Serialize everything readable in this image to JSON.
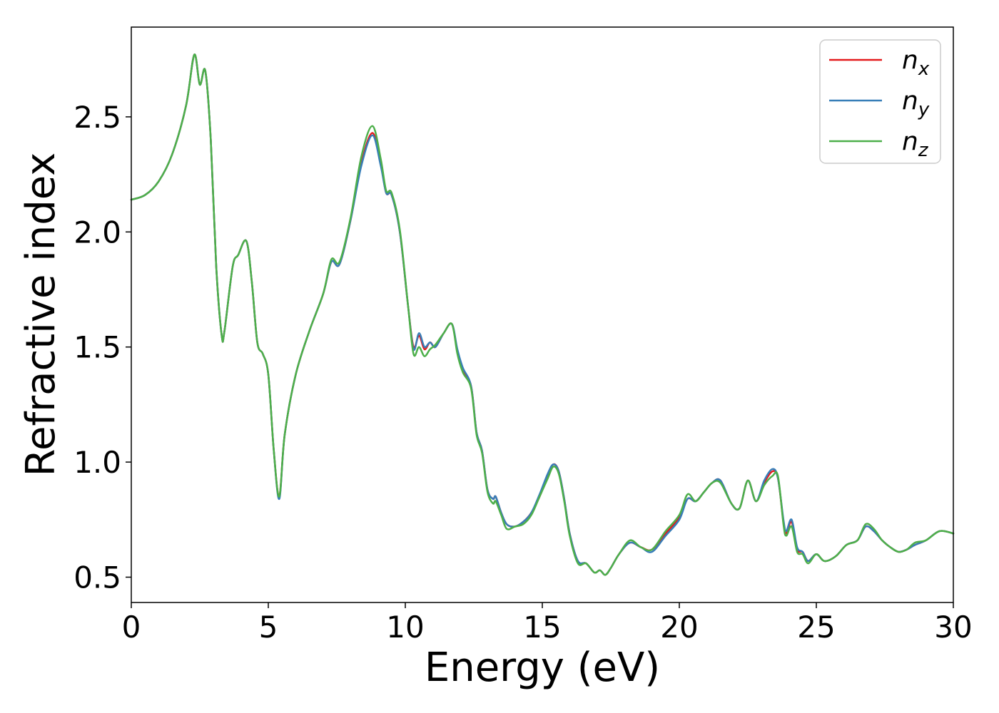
{
  "chart_data": {
    "type": "line",
    "xlabel": "Energy (eV)",
    "ylabel": "Refractive index",
    "xlim": [
      0,
      30
    ],
    "ylim": [
      0.39,
      2.89
    ],
    "xticks": [
      0,
      5,
      10,
      15,
      20,
      25,
      30
    ],
    "xtick_labels": [
      "0",
      "5",
      "10",
      "15",
      "20",
      "25",
      "30"
    ],
    "yticks": [
      0.5,
      1.0,
      1.5,
      2.0,
      2.5
    ],
    "ytick_labels": [
      "0.5",
      "1.0",
      "1.5",
      "2.0",
      "2.5"
    ],
    "grid": false,
    "legend_position": "top-right",
    "x": [
      0,
      0.5,
      1.0,
      1.5,
      2.0,
      2.3,
      2.5,
      2.7,
      2.9,
      3.1,
      3.3,
      3.4,
      3.7,
      3.9,
      4.2,
      4.4,
      4.6,
      4.8,
      5.0,
      5.2,
      5.4,
      5.6,
      6.0,
      6.5,
      7.0,
      7.3,
      7.6,
      8.0,
      8.4,
      8.8,
      9.1,
      9.3,
      9.5,
      9.8,
      10.1,
      10.3,
      10.5,
      10.7,
      10.9,
      11.1,
      11.4,
      11.7,
      11.9,
      12.1,
      12.4,
      12.6,
      12.8,
      13.0,
      13.2,
      13.3,
      13.5,
      13.7,
      14.0,
      14.3,
      14.6,
      14.9,
      15.2,
      15.4,
      15.6,
      15.8,
      16.0,
      16.3,
      16.6,
      16.9,
      17.1,
      17.3,
      17.5,
      17.8,
      18.2,
      18.6,
      19.0,
      19.5,
      20.0,
      20.3,
      20.6,
      20.9,
      21.2,
      21.5,
      21.9,
      22.2,
      22.5,
      22.8,
      23.1,
      23.4,
      23.6,
      23.8,
      23.9,
      24.1,
      24.3,
      24.5,
      24.7,
      25.0,
      25.3,
      25.7,
      26.1,
      26.5,
      26.8,
      27.1,
      27.4,
      27.7,
      28.0,
      28.3,
      28.6,
      29.0,
      29.5,
      30.0
    ],
    "series": [
      {
        "name": "n",
        "subscript": "x",
        "color": "#e41a1c",
        "values": [
          2.14,
          2.16,
          2.22,
          2.34,
          2.55,
          2.77,
          2.64,
          2.7,
          2.4,
          1.85,
          1.55,
          1.57,
          1.85,
          1.9,
          1.96,
          1.78,
          1.52,
          1.47,
          1.38,
          1.05,
          0.85,
          1.12,
          1.38,
          1.57,
          1.73,
          1.87,
          1.86,
          2.05,
          2.3,
          2.43,
          2.3,
          2.17,
          2.16,
          2.0,
          1.68,
          1.5,
          1.55,
          1.49,
          1.52,
          1.5,
          1.56,
          1.6,
          1.48,
          1.4,
          1.33,
          1.13,
          1.05,
          0.88,
          0.84,
          0.85,
          0.78,
          0.73,
          0.72,
          0.74,
          0.78,
          0.85,
          0.94,
          0.99,
          0.96,
          0.84,
          0.69,
          0.57,
          0.56,
          0.52,
          0.53,
          0.51,
          0.54,
          0.6,
          0.65,
          0.63,
          0.62,
          0.69,
          0.76,
          0.84,
          0.83,
          0.87,
          0.91,
          0.92,
          0.82,
          0.8,
          0.92,
          0.83,
          0.91,
          0.96,
          0.93,
          0.74,
          0.69,
          0.74,
          0.62,
          0.61,
          0.57,
          0.6,
          0.57,
          0.59,
          0.64,
          0.66,
          0.72,
          0.7,
          0.66,
          0.63,
          0.61,
          0.62,
          0.64,
          0.66,
          0.7,
          0.69
        ]
      },
      {
        "name": "n",
        "subscript": "y",
        "color": "#377eb8",
        "values": [
          2.14,
          2.16,
          2.22,
          2.34,
          2.55,
          2.77,
          2.64,
          2.7,
          2.4,
          1.85,
          1.55,
          1.57,
          1.85,
          1.9,
          1.96,
          1.78,
          1.52,
          1.47,
          1.38,
          1.05,
          0.84,
          1.12,
          1.38,
          1.57,
          1.73,
          1.87,
          1.86,
          2.05,
          2.29,
          2.42,
          2.29,
          2.17,
          2.16,
          2.0,
          1.68,
          1.49,
          1.56,
          1.5,
          1.52,
          1.5,
          1.56,
          1.6,
          1.49,
          1.41,
          1.33,
          1.13,
          1.05,
          0.88,
          0.84,
          0.85,
          0.78,
          0.73,
          0.72,
          0.74,
          0.78,
          0.86,
          0.95,
          0.99,
          0.96,
          0.84,
          0.69,
          0.57,
          0.56,
          0.52,
          0.53,
          0.51,
          0.54,
          0.6,
          0.65,
          0.63,
          0.61,
          0.68,
          0.75,
          0.84,
          0.83,
          0.87,
          0.91,
          0.92,
          0.82,
          0.8,
          0.92,
          0.83,
          0.92,
          0.97,
          0.93,
          0.75,
          0.7,
          0.75,
          0.63,
          0.61,
          0.57,
          0.6,
          0.57,
          0.59,
          0.64,
          0.66,
          0.72,
          0.7,
          0.66,
          0.63,
          0.61,
          0.62,
          0.64,
          0.66,
          0.7,
          0.69
        ]
      },
      {
        "name": "n",
        "subscript": "z",
        "color": "#4daf4a",
        "values": [
          2.14,
          2.16,
          2.22,
          2.34,
          2.55,
          2.77,
          2.64,
          2.7,
          2.4,
          1.85,
          1.55,
          1.57,
          1.85,
          1.9,
          1.96,
          1.78,
          1.52,
          1.47,
          1.38,
          1.05,
          0.85,
          1.12,
          1.38,
          1.57,
          1.73,
          1.88,
          1.87,
          2.06,
          2.33,
          2.46,
          2.32,
          2.18,
          2.17,
          2.01,
          1.68,
          1.47,
          1.5,
          1.46,
          1.49,
          1.51,
          1.56,
          1.6,
          1.47,
          1.39,
          1.32,
          1.12,
          1.04,
          0.87,
          0.82,
          0.83,
          0.77,
          0.71,
          0.72,
          0.73,
          0.77,
          0.85,
          0.93,
          0.98,
          0.95,
          0.83,
          0.68,
          0.56,
          0.56,
          0.52,
          0.53,
          0.51,
          0.54,
          0.6,
          0.66,
          0.63,
          0.62,
          0.7,
          0.77,
          0.86,
          0.83,
          0.87,
          0.91,
          0.91,
          0.82,
          0.8,
          0.92,
          0.83,
          0.9,
          0.94,
          0.94,
          0.73,
          0.68,
          0.72,
          0.61,
          0.6,
          0.56,
          0.6,
          0.57,
          0.59,
          0.64,
          0.66,
          0.73,
          0.71,
          0.66,
          0.63,
          0.61,
          0.62,
          0.65,
          0.66,
          0.7,
          0.69
        ]
      }
    ]
  }
}
